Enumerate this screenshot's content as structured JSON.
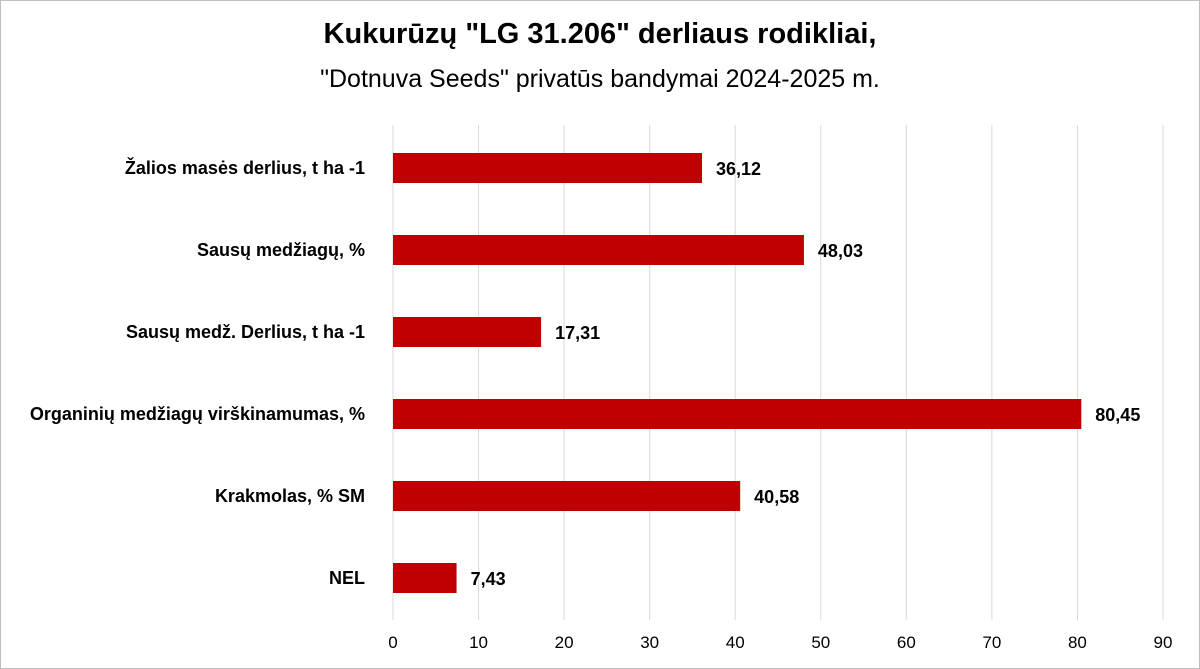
{
  "chart_data": {
    "type": "bar",
    "orientation": "horizontal",
    "title": "Kukurūzų \"LG 31.206\" derliaus rodikliai,",
    "subtitle": "\"Dotnuva Seeds\" privatūs bandymai 2024-2025 m.",
    "categories": [
      "Žalios masės derlius, t ha -1",
      "Sausų medžiagų, %",
      "Sausų medž. Derlius, t ha -1",
      "Organinių medžiagų virškinamumas, %",
      "Krakmolas, % SM",
      "NEL"
    ],
    "values": [
      36.12,
      48.03,
      17.31,
      80.45,
      40.58,
      7.43
    ],
    "value_labels": [
      "36,12",
      "48,03",
      "17,31",
      "80,45",
      "40,58",
      "7,43"
    ],
    "xlim": [
      0,
      90
    ],
    "xticks": [
      0,
      10,
      20,
      30,
      40,
      50,
      60,
      70,
      80,
      90
    ],
    "grid": "vertical",
    "legend": "none",
    "bar_color": "#C00000",
    "grid_color": "#d9d9d9"
  }
}
